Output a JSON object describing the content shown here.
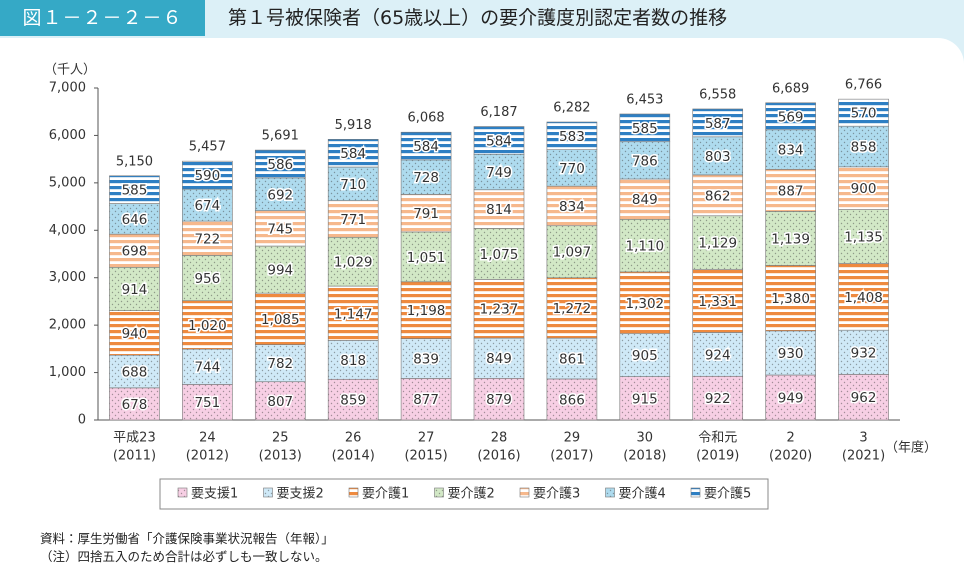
{
  "header": {
    "figure_number": "図１－２－２－６",
    "title": "第１号被保険者（65歳以上）の要介護度別認定者数の推移"
  },
  "notes": [
    "資料：厚生労働省「介護保険事業状況報告（年報）」",
    "（注）四捨五入のため合計は必ずしも一致しない。"
  ],
  "chart_data": {
    "type": "stacked-bar",
    "y_unit": "（千人）",
    "x_unit": "（年度）",
    "categories": [
      [
        "平成23",
        "(2011)"
      ],
      [
        "24",
        "(2012)"
      ],
      [
        "25",
        "(2013)"
      ],
      [
        "26",
        "(2014)"
      ],
      [
        "27",
        "(2015)"
      ],
      [
        "28",
        "(2016)"
      ],
      [
        "29",
        "(2017)"
      ],
      [
        "30",
        "(2018)"
      ],
      [
        "令和元",
        "(2019)"
      ],
      [
        "2",
        "(2020)"
      ],
      [
        "3",
        "(2021)"
      ]
    ],
    "ylim": [
      0,
      7000
    ],
    "yticks": [
      0,
      {
        "value": 1000,
        "label": "1,000"
      },
      {
        "value": 2000,
        "label": "2,000"
      },
      {
        "value": 3000,
        "label": "3,000"
      },
      {
        "value": 4000,
        "label": "4,000"
      },
      {
        "value": 5000,
        "label": "5,000"
      },
      {
        "value": 6000,
        "label": "6,000"
      },
      {
        "value": 7000,
        "label": "7,000"
      }
    ],
    "grid": false,
    "series": [
      {
        "name": "要支援1",
        "color": "#f7cfe4",
        "pattern": "dots",
        "values": [
          678,
          751,
          807,
          859,
          877,
          879,
          866,
          915,
          922,
          949,
          962
        ],
        "value_labels": [
          "678",
          "751",
          "807",
          "859",
          "877",
          "879",
          "866",
          "915",
          "922",
          "949",
          "962"
        ]
      },
      {
        "name": "要支援2",
        "color": "#cfe9f7",
        "pattern": "dots",
        "values": [
          688,
          744,
          782,
          818,
          839,
          849,
          861,
          905,
          924,
          930,
          932
        ],
        "value_labels": [
          "688",
          "744",
          "782",
          "818",
          "839",
          "849",
          "861",
          "905",
          "924",
          "930",
          "932"
        ]
      },
      {
        "name": "要介護1",
        "color": "#ee8a3f",
        "pattern": "stripes",
        "values": [
          940,
          1020,
          1085,
          1147,
          1198,
          1237,
          1272,
          1302,
          1331,
          1380,
          1408
        ],
        "value_labels": [
          "940",
          "1,020",
          "1,085",
          "1,147",
          "1,198",
          "1,237",
          "1,272",
          "1,302",
          "1,331",
          "1,380",
          "1,408"
        ]
      },
      {
        "name": "要介護2",
        "color": "#d2e8c6",
        "pattern": "dots",
        "values": [
          914,
          956,
          994,
          1029,
          1051,
          1075,
          1097,
          1110,
          1129,
          1139,
          1135
        ],
        "value_labels": [
          "914",
          "956",
          "994",
          "1,029",
          "1,051",
          "1,075",
          "1,097",
          "1,110",
          "1,129",
          "1,139",
          "1,135"
        ]
      },
      {
        "name": "要介護3",
        "color": "#f6b88c",
        "pattern": "stripes",
        "values": [
          698,
          722,
          745,
          771,
          791,
          814,
          834,
          849,
          862,
          887,
          900
        ],
        "value_labels": [
          "698",
          "722",
          "745",
          "771",
          "791",
          "814",
          "834",
          "849",
          "862",
          "887",
          "900"
        ]
      },
      {
        "name": "要介護4",
        "color": "#aedbee",
        "pattern": "dots",
        "values": [
          646,
          674,
          692,
          710,
          728,
          749,
          770,
          786,
          803,
          834,
          858
        ],
        "value_labels": [
          "646",
          "674",
          "692",
          "710",
          "728",
          "749",
          "770",
          "786",
          "803",
          "834",
          "858"
        ]
      },
      {
        "name": "要介護5",
        "color": "#2e7fc3",
        "pattern": "stripes",
        "values": [
          585,
          590,
          586,
          584,
          584,
          584,
          583,
          585,
          587,
          569,
          570
        ],
        "value_labels": [
          "585",
          "590",
          "586",
          "584",
          "584",
          "584",
          "583",
          "585",
          "587",
          "569",
          "570"
        ]
      }
    ],
    "totals": {
      "values": [
        5150,
        5457,
        5691,
        5918,
        6068,
        6187,
        6282,
        6453,
        6558,
        6689,
        6766
      ],
      "value_labels": [
        "5,150",
        "5,457",
        "5,691",
        "5,918",
        "6,068",
        "6,187",
        "6,282",
        "6,453",
        "6,558",
        "6,689",
        "6,766"
      ]
    }
  }
}
